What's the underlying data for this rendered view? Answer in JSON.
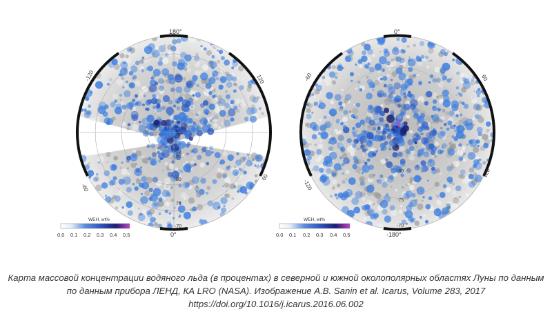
{
  "maps": [
    {
      "id": "north",
      "lon_labels": [
        "180°",
        "-120",
        "120",
        "-60",
        "60",
        "0°"
      ],
      "lat_labels": [
        "85",
        "80",
        "75",
        "-70"
      ],
      "colorbar": {
        "title": "WEH, wt%",
        "ticks": [
          "0.0",
          "0.1",
          "0.2",
          "0.3",
          "0.4",
          "0.5"
        ]
      }
    },
    {
      "id": "south",
      "lon_labels": [
        "0°",
        "-60",
        "60",
        "-120",
        "120",
        "-180°"
      ],
      "lat_labels": [
        "-80",
        "-75",
        "-70"
      ],
      "colorbar": {
        "title": "WEH, wt%",
        "ticks": [
          "0.0",
          "0.1",
          "0.2",
          "0.3",
          "0.4",
          "0.5"
        ]
      }
    }
  ],
  "colors": {
    "low": "#ffffff",
    "mid": "#3a7de0",
    "high": "#1b1f6e",
    "peak": "#c040c8",
    "terrain": "#c8c8c8",
    "frame": "#111111"
  },
  "caption": {
    "line1": "Карта массовой концентрации водяного льда (в процентах) в северной и южной околополярных областях Луны по данным",
    "line2": "по данным прибора ЛЕНД, КА LRO (NASA). Изображение А.В. Sanin et al. Icarus, Volume 283, 2017",
    "line3": "https://doi.org/10.1016/j.icarus.2016.06.002"
  }
}
